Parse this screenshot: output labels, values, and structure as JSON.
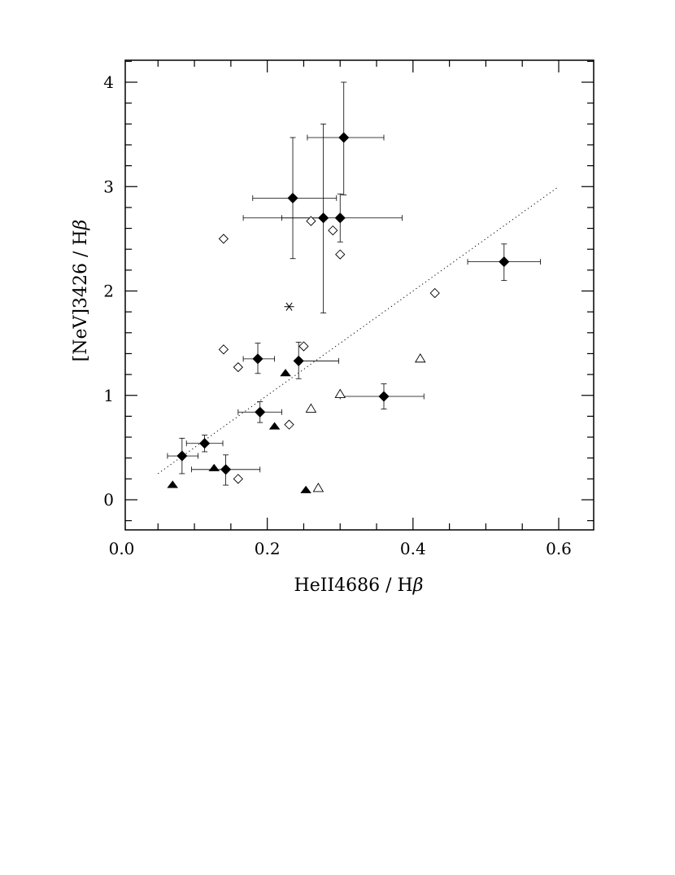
{
  "chart_data": {
    "type": "scatter",
    "xlabel": "HeII4686  /  H",
    "ylabel": "[NeV]3426  /  H",
    "label_suffix": "β",
    "xlim": [
      0.0,
      0.65
    ],
    "ylim": [
      -0.28,
      4.22
    ],
    "x_ticks": [
      "0.0",
      "0.2",
      "0.4",
      "0.6"
    ],
    "x_tick_values": [
      0.0,
      0.2,
      0.4,
      0.6
    ],
    "y_ticks": [
      "0",
      "1",
      "2",
      "3",
      "4"
    ],
    "y_tick_values": [
      0,
      1,
      2,
      3,
      4
    ],
    "grid": false,
    "series": [
      {
        "marker": "filled-diamond",
        "points": [
          {
            "x": 0.305,
            "y": 3.47,
            "xerr": [
              0.05,
              0.055
            ],
            "yerr": [
              0.55,
              0.53
            ]
          },
          {
            "x": 0.235,
            "y": 2.89,
            "xerr": [
              0.055,
              0.06
            ],
            "yerr": [
              0.58,
              0.58
            ]
          },
          {
            "x": 0.277,
            "y": 2.7,
            "xerr": [
              0.11,
              0.0
            ],
            "yerr": [
              0.91,
              0.9
            ]
          },
          {
            "x": 0.3,
            "y": 2.7,
            "xerr": [
              0.08,
              0.085
            ],
            "yerr": [
              0.23,
              0.23
            ]
          },
          {
            "x": 0.525,
            "y": 2.28,
            "xerr": [
              0.05,
              0.05
            ],
            "yerr": [
              0.18,
              0.17
            ]
          },
          {
            "x": 0.187,
            "y": 1.35,
            "xerr": [
              0.02,
              0.023
            ],
            "yerr": [
              0.14,
              0.15
            ]
          },
          {
            "x": 0.243,
            "y": 1.33,
            "xerr": [
              0.0,
              0.055
            ],
            "yerr": [
              0.17,
              0.18
            ]
          },
          {
            "x": 0.36,
            "y": 0.99,
            "xerr": [
              0.06,
              0.055
            ],
            "yerr": [
              0.12,
              0.12
            ]
          },
          {
            "x": 0.19,
            "y": 0.84,
            "xerr": [
              0.03,
              0.03
            ],
            "yerr": [
              0.1,
              0.1
            ]
          },
          {
            "x": 0.114,
            "y": 0.54,
            "xerr": [
              0.025,
              0.025
            ],
            "yerr": [
              0.08,
              0.08
            ]
          },
          {
            "x": 0.083,
            "y": 0.42,
            "xerr": [
              0.02,
              0.022
            ],
            "yerr": [
              0.17,
              0.17
            ]
          },
          {
            "x": 0.143,
            "y": 0.29,
            "xerr": [
              0.047,
              0.047
            ],
            "yerr": [
              0.15,
              0.14
            ]
          }
        ]
      },
      {
        "marker": "open-diamond",
        "points": [
          {
            "x": 0.14,
            "y": 2.5
          },
          {
            "x": 0.26,
            "y": 2.67
          },
          {
            "x": 0.29,
            "y": 2.58
          },
          {
            "x": 0.3,
            "y": 2.35
          },
          {
            "x": 0.43,
            "y": 1.98
          },
          {
            "x": 0.14,
            "y": 1.44
          },
          {
            "x": 0.25,
            "y": 1.47
          },
          {
            "x": 0.16,
            "y": 1.27
          },
          {
            "x": 0.23,
            "y": 0.72
          },
          {
            "x": 0.16,
            "y": 0.2
          }
        ]
      },
      {
        "marker": "open-triangle",
        "points": [
          {
            "x": 0.41,
            "y": 1.35
          },
          {
            "x": 0.3,
            "y": 1.01
          },
          {
            "x": 0.26,
            "y": 0.87
          },
          {
            "x": 0.27,
            "y": 0.11
          }
        ]
      },
      {
        "marker": "filled-triangle",
        "points": [
          {
            "x": 0.225,
            "y": 1.21
          },
          {
            "x": 0.21,
            "y": 0.7
          },
          {
            "x": 0.127,
            "y": 0.3
          },
          {
            "x": 0.07,
            "y": 0.14
          },
          {
            "x": 0.253,
            "y": 0.09
          }
        ]
      },
      {
        "marker": "asterisk",
        "points": [
          {
            "x": 0.23,
            "y": 1.85
          }
        ]
      }
    ],
    "dotted_line": {
      "x": [
        0.05,
        0.6
      ],
      "y": [
        0.25,
        3.0
      ]
    }
  }
}
